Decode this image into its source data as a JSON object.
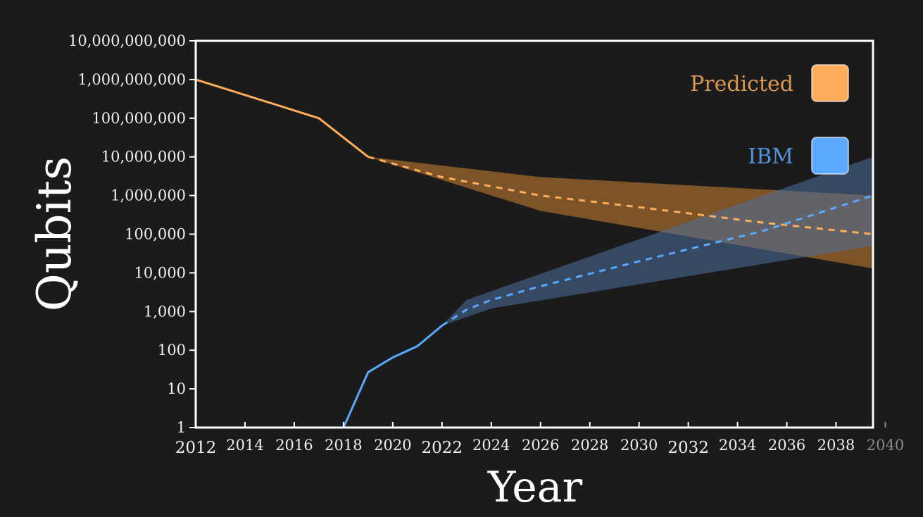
{
  "colors": {
    "background": "#1b1b1b",
    "predicted": "#ffad5a",
    "ibm": "#5aa8ff",
    "predicted_band": "#b9782e",
    "ibm_band": "#4a6f9e",
    "axis": "#ffffff"
  },
  "chart_data": {
    "type": "line",
    "title": "",
    "xlabel": "Year",
    "ylabel": "Qubits",
    "yscale": "log",
    "xlim": [
      2012,
      2039.5
    ],
    "ylim": [
      1,
      10000000000
    ],
    "x_ticks": [
      2012,
      2014,
      2016,
      2018,
      2020,
      2022,
      2024,
      2026,
      2028,
      2030,
      2032,
      2034,
      2036,
      2038,
      2040
    ],
    "x_tick_labels": [
      "2012",
      "2014",
      "2016",
      "2018",
      "2020",
      "2022",
      "2024",
      "2026",
      "2028",
      "2030",
      "2032",
      "2034",
      "2036",
      "2038",
      "2040"
    ],
    "x_tick_emphasis": [
      "2012",
      "2022",
      "2032"
    ],
    "x_tick_dimmed": [
      "2040"
    ],
    "y_ticks": [
      1,
      10,
      100,
      1000,
      10000,
      100000,
      1000000,
      10000000,
      100000000,
      1000000000,
      10000000000
    ],
    "y_tick_labels": [
      "1",
      "10",
      "100",
      "1,000",
      "10,000",
      "100,000",
      "1,000,000",
      "10,000,000",
      "100,000,000",
      "1,000,000,000",
      "10,000,000,000"
    ],
    "legend": [
      {
        "label": "Predicted",
        "color": "#ffad5a"
      },
      {
        "label": "IBM",
        "color": "#5aa8ff"
      }
    ],
    "legend_position": "top-right",
    "series": [
      {
        "name": "Predicted",
        "color": "#ffad5a",
        "solid": {
          "x": [
            2012,
            2017,
            2019
          ],
          "y": [
            1000000000,
            100000000,
            10000000
          ]
        },
        "dashed": {
          "x": [
            2019,
            2022,
            2026,
            2030,
            2035,
            2039.5
          ],
          "y": [
            10000000,
            3000000,
            1000000,
            500000,
            200000,
            100000
          ]
        },
        "band": {
          "upper": {
            "x": [
              2019,
              2026,
              2039.5
            ],
            "y": [
              10000000,
              3000000,
              1000000
            ]
          },
          "lower": {
            "x": [
              2019,
              2026,
              2039.5
            ],
            "y": [
              10000000,
              400000,
              13000
            ]
          }
        }
      },
      {
        "name": "IBM",
        "color": "#5aa8ff",
        "solid": {
          "x": [
            2018,
            2019,
            2020,
            2021,
            2022
          ],
          "y": [
            1,
            27,
            65,
            127,
            433
          ]
        },
        "dashed": {
          "x": [
            2022,
            2023,
            2024,
            2026,
            2030,
            2035,
            2039.5
          ],
          "y": [
            433,
            1121,
            2000,
            4500,
            20000,
            120000,
            1000000
          ]
        },
        "band": {
          "upper": {
            "x": [
              2022,
              2023,
              2039.5
            ],
            "y": [
              433,
              2000,
              10000000
            ]
          },
          "lower": {
            "x": [
              2022,
              2024,
              2039.5
            ],
            "y": [
              433,
              1200,
              50000
            ]
          }
        }
      }
    ]
  }
}
